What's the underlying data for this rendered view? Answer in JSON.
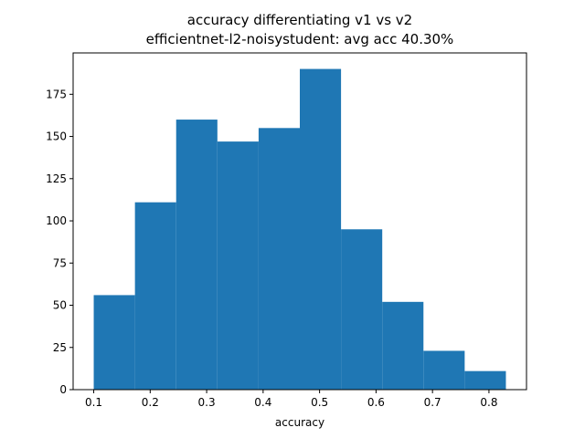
{
  "chart_data": {
    "type": "bar",
    "title": "accuracy differentiating v1 vs v2",
    "subtitle": "efficientnet-l2-noisystudent: avg acc 40.30%",
    "xlabel": "accuracy",
    "ylabel": "",
    "bin_edges": [
      0.1,
      0.173,
      0.246,
      0.319,
      0.392,
      0.465,
      0.538,
      0.611,
      0.684,
      0.757,
      0.83
    ],
    "values": [
      56,
      111,
      160,
      147,
      155,
      190,
      95,
      52,
      23,
      11
    ],
    "xlim": [
      0.0635,
      0.8665
    ],
    "ylim": [
      0,
      199.5
    ],
    "xticks": [
      0.1,
      0.2,
      0.3,
      0.4,
      0.5,
      0.6,
      0.7,
      0.8
    ],
    "xtick_labels": [
      "0.1",
      "0.2",
      "0.3",
      "0.4",
      "0.5",
      "0.6",
      "0.7",
      "0.8"
    ],
    "yticks": [
      0,
      25,
      50,
      75,
      100,
      125,
      150,
      175
    ],
    "ytick_labels": [
      "0",
      "25",
      "50",
      "75",
      "100",
      "125",
      "150",
      "175"
    ],
    "bar_color": "#1f77b4",
    "grid": false,
    "legend": "none"
  }
}
